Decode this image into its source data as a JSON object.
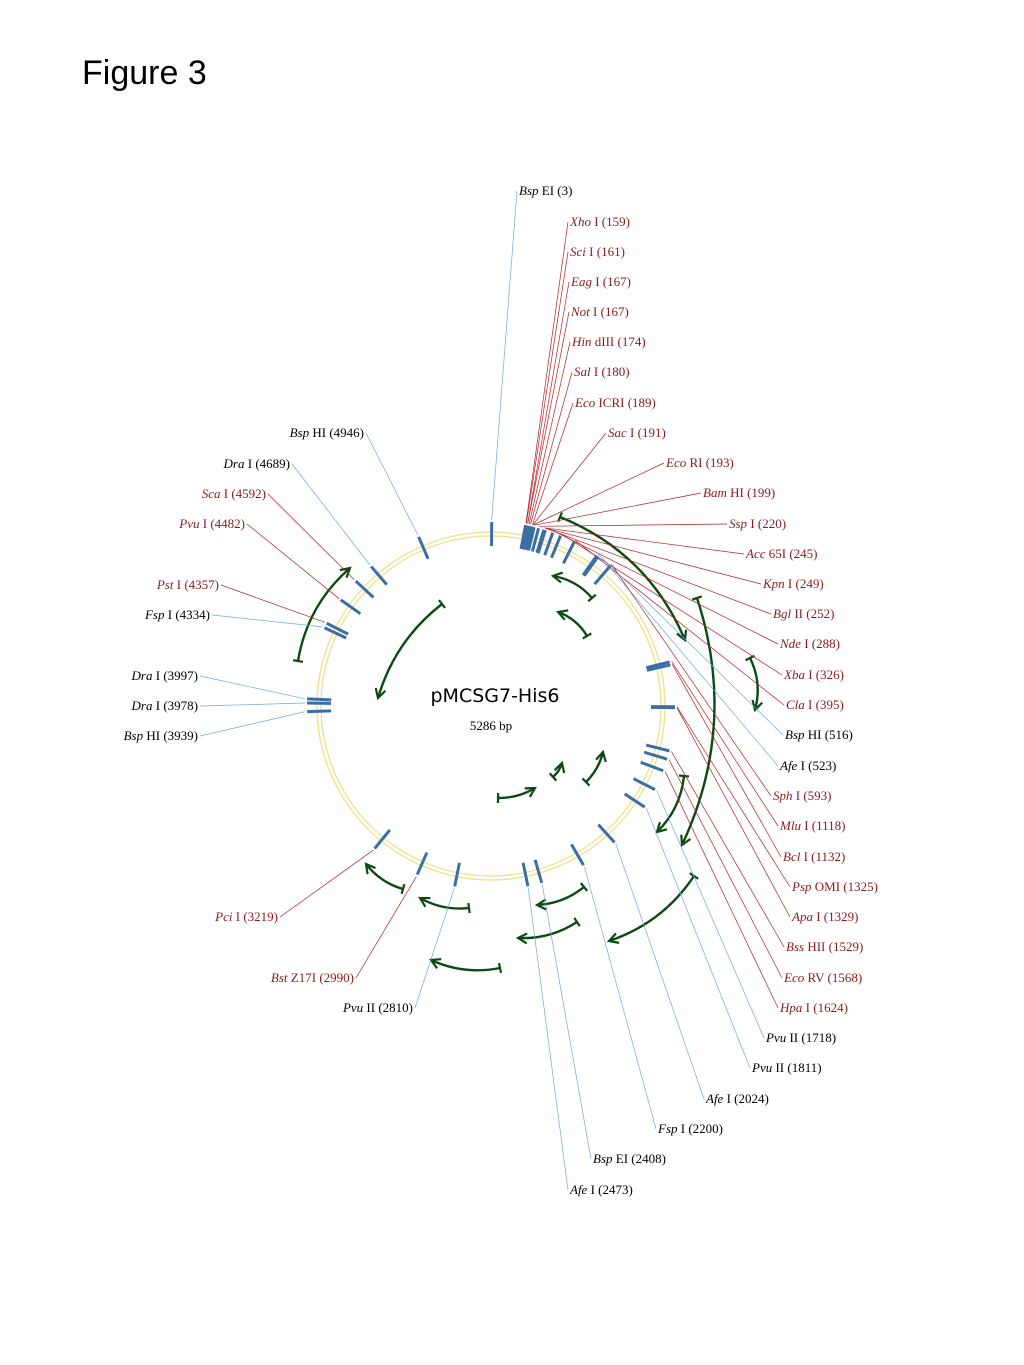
{
  "figure_label": "Figure 3",
  "plasmid": {
    "name": "pMCSG7-His6",
    "size": "5286 bp",
    "length_bp": 5286
  },
  "colors": {
    "unique_site": "#8b1a1a",
    "multi_site": "#000000",
    "unique_line": "#b22222",
    "multi_line": "#6fa8dc",
    "tick": "#3a6ea5",
    "backbone": "#f0e08a",
    "feature_arrow": "#0b4a12"
  },
  "sites": [
    {
      "enzyme": "Bsp",
      "suffix": "EI",
      "pos": "3",
      "bp": 3,
      "unique": false
    },
    {
      "enzyme": "Xho",
      "suffix": "I",
      "pos": "159",
      "bp": 159,
      "unique": true
    },
    {
      "enzyme": "Sci",
      "suffix": "I",
      "pos": "161",
      "bp": 161,
      "unique": true
    },
    {
      "enzyme": "Eag",
      "suffix": "I",
      "pos": "167",
      "bp": 167,
      "unique": true
    },
    {
      "enzyme": "Not",
      "suffix": "I",
      "pos": "167",
      "bp": 167,
      "unique": true
    },
    {
      "enzyme": "Hin",
      "suffix": "dIII",
      "pos": "174",
      "bp": 174,
      "unique": true
    },
    {
      "enzyme": "Sal",
      "suffix": "I",
      "pos": "180",
      "bp": 180,
      "unique": true
    },
    {
      "enzyme": "Eco",
      "suffix": "ICRI",
      "pos": "189",
      "bp": 189,
      "unique": true
    },
    {
      "enzyme": "Sac",
      "suffix": "I",
      "pos": "191",
      "bp": 191,
      "unique": true
    },
    {
      "enzyme": "Eco",
      "suffix": "RI",
      "pos": "193",
      "bp": 193,
      "unique": true
    },
    {
      "enzyme": "Bam",
      "suffix": "HI",
      "pos": "199",
      "bp": 199,
      "unique": true
    },
    {
      "enzyme": "Ssp",
      "suffix": "I",
      "pos": "220",
      "bp": 220,
      "unique": true
    },
    {
      "enzyme": "Acc",
      "suffix": "65I",
      "pos": "245",
      "bp": 245,
      "unique": true
    },
    {
      "enzyme": "Kpn",
      "suffix": "I",
      "pos": "249",
      "bp": 249,
      "unique": true
    },
    {
      "enzyme": "Bgl",
      "suffix": "II",
      "pos": "252",
      "bp": 252,
      "unique": true
    },
    {
      "enzyme": "Nde",
      "suffix": "I",
      "pos": "288",
      "bp": 288,
      "unique": true
    },
    {
      "enzyme": "Xba",
      "suffix": "I",
      "pos": "326",
      "bp": 326,
      "unique": true
    },
    {
      "enzyme": "Cla",
      "suffix": "I",
      "pos": "395",
      "bp": 395,
      "unique": true
    },
    {
      "enzyme": "Bsp",
      "suffix": "HI",
      "pos": "516",
      "bp": 516,
      "unique": false
    },
    {
      "enzyme": "Afe",
      "suffix": "I",
      "pos": "523",
      "bp": 523,
      "unique": false
    },
    {
      "enzyme": "Sph",
      "suffix": "I",
      "pos": "593",
      "bp": 593,
      "unique": true
    },
    {
      "enzyme": "Mlu",
      "suffix": "I",
      "pos": "1118",
      "bp": 1118,
      "unique": true
    },
    {
      "enzyme": "Bcl",
      "suffix": "I",
      "pos": "1132",
      "bp": 1132,
      "unique": true
    },
    {
      "enzyme": "Psp",
      "suffix": "OMI",
      "pos": "1325",
      "bp": 1325,
      "unique": true
    },
    {
      "enzyme": "Apa",
      "suffix": "I",
      "pos": "1329",
      "bp": 1329,
      "unique": true
    },
    {
      "enzyme": "Bss",
      "suffix": "HII",
      "pos": "1529",
      "bp": 1529,
      "unique": true
    },
    {
      "enzyme": "Eco",
      "suffix": "RV",
      "pos": "1568",
      "bp": 1568,
      "unique": true
    },
    {
      "enzyme": "Hpa",
      "suffix": "I",
      "pos": "1624",
      "bp": 1624,
      "unique": true
    },
    {
      "enzyme": "Pvu",
      "suffix": "II",
      "pos": "1718",
      "bp": 1718,
      "unique": false
    },
    {
      "enzyme": "Pvu",
      "suffix": "II",
      "pos": "1811",
      "bp": 1811,
      "unique": false
    },
    {
      "enzyme": "Afe",
      "suffix": "I",
      "pos": "2024",
      "bp": 2024,
      "unique": false
    },
    {
      "enzyme": "Fsp",
      "suffix": "I",
      "pos": "2200",
      "bp": 2200,
      "unique": false
    },
    {
      "enzyme": "Bsp",
      "suffix": "EI",
      "pos": "2408",
      "bp": 2408,
      "unique": false
    },
    {
      "enzyme": "Afe",
      "suffix": "I",
      "pos": "2473",
      "bp": 2473,
      "unique": false
    },
    {
      "enzyme": "Pvu",
      "suffix": "II",
      "pos": "2810",
      "bp": 2810,
      "unique": false
    },
    {
      "enzyme": "Bst",
      "suffix": "Z17I",
      "pos": "2990",
      "bp": 2990,
      "unique": true
    },
    {
      "enzyme": "Pci",
      "suffix": "I",
      "pos": "3219",
      "bp": 3219,
      "unique": true
    },
    {
      "enzyme": "Bsp",
      "suffix": "HI",
      "pos": "3939",
      "bp": 3939,
      "unique": false
    },
    {
      "enzyme": "Dra",
      "suffix": "I",
      "pos": "3978",
      "bp": 3978,
      "unique": false
    },
    {
      "enzyme": "Dra",
      "suffix": "I",
      "pos": "3997",
      "bp": 3997,
      "unique": false
    },
    {
      "enzyme": "Fsp",
      "suffix": "I",
      "pos": "4334",
      "bp": 4334,
      "unique": false
    },
    {
      "enzyme": "Pst",
      "suffix": "I",
      "pos": "4357",
      "bp": 4357,
      "unique": true
    },
    {
      "enzyme": "Pvu",
      "suffix": "I",
      "pos": "4482",
      "bp": 4482,
      "unique": true
    },
    {
      "enzyme": "Sca",
      "suffix": "I",
      "pos": "4592",
      "bp": 4592,
      "unique": true
    },
    {
      "enzyme": "Dra",
      "suffix": "I",
      "pos": "4689",
      "bp": 4689,
      "unique": false
    },
    {
      "enzyme": "Bsp",
      "suffix": "HI",
      "pos": "4946",
      "bp": 4946,
      "unique": false
    }
  ]
}
